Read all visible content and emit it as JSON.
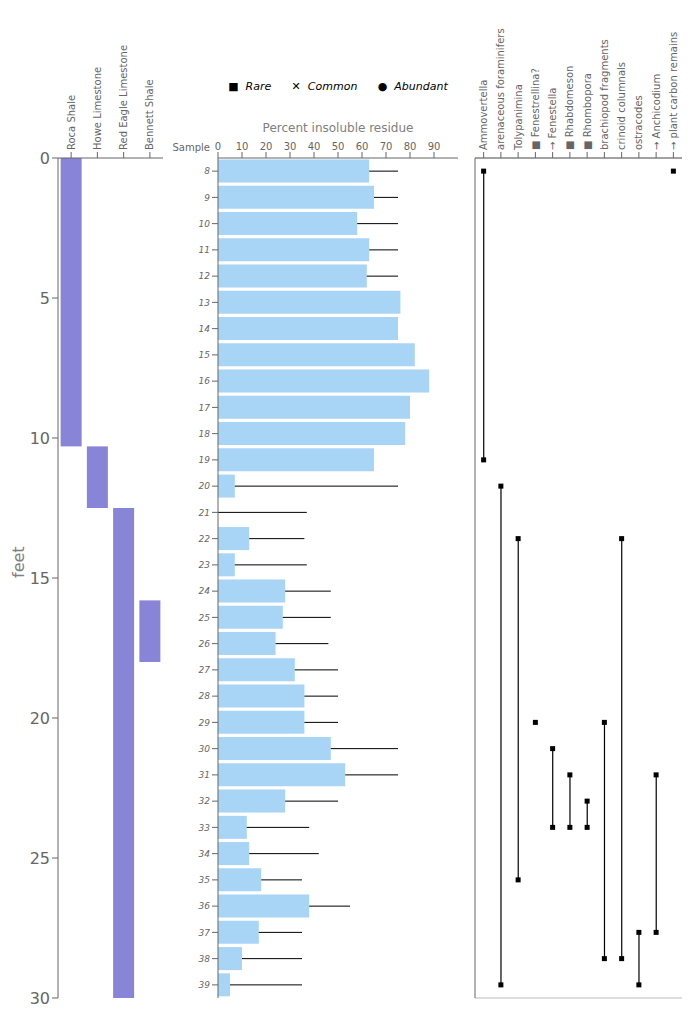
{
  "chart_data": [
    {
      "type": "bar",
      "categories": [
        "Roca Shale",
        "Howe Limestone",
        "Red Eagle Limestone",
        "Bennett Shale"
      ],
      "ranges": [
        [
          0.0,
          10.3
        ],
        [
          10.3,
          12.5
        ],
        [
          12.5,
          30.0
        ],
        [
          15.8,
          18.0
        ]
      ],
      "ylabel": "feet",
      "ylim": [
        30,
        0
      ],
      "yticks": [
        0,
        5,
        10,
        15,
        20,
        25,
        30
      ]
    },
    {
      "type": "bar",
      "orientation": "horizontal",
      "categories": [
        8,
        9,
        10,
        11,
        12,
        13,
        14,
        15,
        16,
        17,
        18,
        19,
        20,
        21,
        22,
        23,
        24,
        25,
        26,
        27,
        28,
        29,
        30,
        31,
        32,
        33,
        34,
        35,
        36,
        37,
        38,
        39
      ],
      "values": [
        63,
        65,
        58,
        63,
        62,
        76,
        75,
        82,
        88,
        80,
        78,
        65,
        7,
        0,
        13,
        7,
        28,
        27,
        24,
        32,
        36,
        36,
        47,
        53,
        28,
        12,
        13,
        18,
        38,
        17,
        10,
        5
      ],
      "line_extents": [
        75,
        75,
        75,
        75,
        75,
        75,
        75,
        75,
        75,
        75,
        75,
        65,
        75,
        37,
        36,
        37,
        47,
        47,
        46,
        50,
        50,
        50,
        75,
        75,
        50,
        38,
        42,
        35,
        55,
        35,
        35,
        35
      ],
      "color": "#a8d4f5",
      "xlabel": "Percent insoluble residue",
      "ylabel": "Sample",
      "xlim": [
        0,
        100
      ],
      "xticks": [
        0,
        10,
        20,
        30,
        40,
        50,
        60,
        70,
        80,
        90
      ],
      "annotations": [
        "■  Rare",
        "✕  Common",
        "●  Abundant"
      ]
    },
    {
      "type": "bar",
      "categories": [
        "Ammovertella",
        "arenaceous foraminifers",
        "Tolypanimina",
        "■ Fenestrellina?",
        "→ Fenestella",
        "■ Rhabdomeson",
        "■ Rhombopora",
        "brachiopod fragments",
        "crinoid columnals",
        "ostracodes",
        "→ Anchicodium",
        "→ plant carbon remains"
      ],
      "ranges": [
        [
          8,
          19
        ],
        [
          20,
          39
        ],
        [
          22,
          35
        ],
        [
          29,
          29
        ],
        [
          30,
          33
        ],
        [
          31,
          33
        ],
        [
          32,
          33
        ],
        [
          29,
          38
        ],
        [
          22,
          38
        ],
        [
          37,
          39
        ],
        [
          31,
          37
        ],
        [
          8,
          8
        ]
      ],
      "ylim": [
        39.5,
        7.5
      ],
      "yticks": [
        8,
        9,
        10,
        11,
        12,
        13,
        14,
        15,
        16,
        17,
        18,
        19,
        20,
        21,
        22,
        23,
        24,
        25,
        26,
        27,
        28,
        29,
        30,
        31,
        32,
        33,
        34,
        35,
        36,
        37,
        38,
        39
      ],
      "grid": true,
      "tick_labels": "x"
    }
  ]
}
